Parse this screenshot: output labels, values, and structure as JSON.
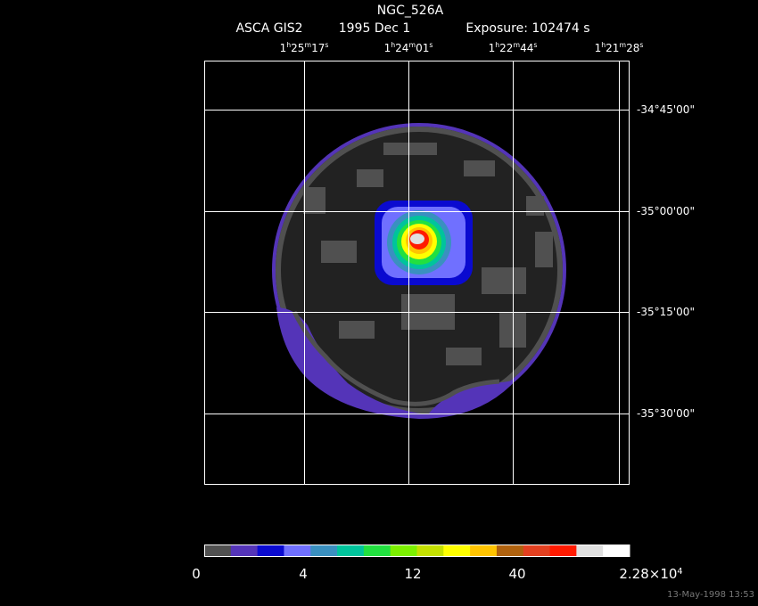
{
  "header": {
    "title": "NGC_526A",
    "instrument": "ASCA GIS2",
    "date": "1995 Dec  1",
    "exposure": "Exposure: 102474 s"
  },
  "ra_labels": [
    [
      "1",
      "h",
      "25",
      "m",
      "17",
      "s"
    ],
    [
      "1",
      "h",
      "24",
      "m",
      "01",
      "s"
    ],
    [
      "1",
      "h",
      "22",
      "m",
      "44",
      "s"
    ],
    [
      "1",
      "h",
      "21",
      "m",
      "28",
      "s"
    ]
  ],
  "dec_labels": [
    "-34°45'00\"",
    "-35°00'00\"",
    "-35°15'00\"",
    "-35°30'00\""
  ],
  "colorbar": {
    "colors": [
      "#505050",
      "#5434b8",
      "#0a0ad0",
      "#7070ff",
      "#3a90c0",
      "#00c49c",
      "#22e040",
      "#7cf000",
      "#c4e000",
      "#ffff00",
      "#ffc400",
      "#b0620e",
      "#e24020",
      "#ff1a00",
      "#e0e0e0",
      "#ffffff"
    ],
    "labels": [
      [
        "0"
      ],
      [
        "4"
      ],
      [
        "12"
      ],
      [
        "40"
      ],
      [
        "2.28×10",
        "4"
      ]
    ]
  },
  "timestamp": "13-May-1998 13:53"
}
